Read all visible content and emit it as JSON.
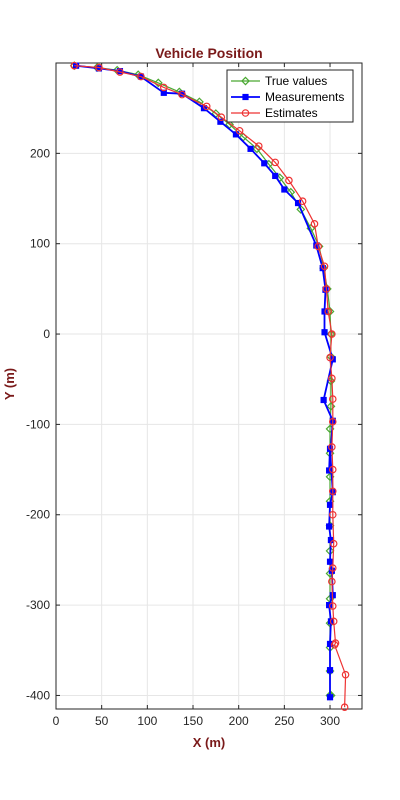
{
  "chart_data": {
    "type": "line",
    "title": "Vehicle Position",
    "xlabel": "X (m)",
    "ylabel": "Y (m)",
    "xlim": [
      0,
      335
    ],
    "ylim": [
      -415,
      300
    ],
    "xticks": [
      0,
      50,
      100,
      150,
      200,
      250,
      300
    ],
    "yticks": [
      -400,
      -300,
      -200,
      -100,
      0,
      100,
      200
    ],
    "grid": true,
    "legend_position": "top-right",
    "colors": {
      "title": "#7a1a1a",
      "axis_label": "#7a1a1a",
      "grid": "#e6e6e6"
    },
    "series": [
      {
        "name": "True values",
        "color": "#4aa832",
        "marker": "diamond",
        "x": [
          20,
          45,
          67,
          90,
          112,
          135,
          157,
          175,
          190,
          205,
          220,
          233,
          245,
          257,
          268,
          279,
          288,
          293,
          297,
          300,
          301,
          301,
          301,
          301,
          300,
          300,
          300,
          300,
          300,
          300,
          300,
          300,
          300,
          300,
          300,
          300,
          301,
          301,
          301,
          300
        ],
        "y": [
          297,
          295,
          292,
          287,
          278,
          268,
          257,
          244,
          232,
          218,
          205,
          188,
          173,
          157,
          138,
          117,
          97,
          73,
          50,
          25,
          0,
          -25,
          -52,
          -80,
          -105,
          -132,
          -158,
          -185,
          -212,
          -240,
          -265,
          -293,
          -320,
          -347,
          -373,
          -400,
          -400,
          -400,
          -400,
          -400
        ]
      },
      {
        "name": "Measurements",
        "color": "#0000ff",
        "marker": "square",
        "x": [
          22,
          47,
          70,
          93,
          118,
          138,
          162,
          180,
          197,
          213,
          228,
          240,
          250,
          265,
          285,
          292,
          295,
          294,
          294,
          303,
          293,
          303,
          299,
          300,
          303,
          300,
          299,
          301,
          300,
          302,
          303,
          299,
          301,
          300,
          300,
          300
        ],
        "y": [
          297,
          294,
          291,
          285,
          267,
          266,
          250,
          235,
          221,
          205,
          189,
          175,
          160,
          145,
          98,
          73,
          49,
          25,
          2,
          -28,
          -73,
          -96,
          -151,
          -127,
          -175,
          -189,
          -213,
          -228,
          -252,
          -262,
          -289,
          -300,
          -318,
          -343,
          -372,
          -402
        ]
      },
      {
        "name": "Estimates",
        "color": "#ee3333",
        "marker": "circle",
        "x": [
          20,
          47,
          70,
          93,
          118,
          138,
          165,
          181,
          201,
          222,
          240,
          255,
          270,
          283,
          287,
          294,
          296,
          298,
          302,
          300,
          302,
          303,
          303,
          302,
          303,
          303,
          303,
          304,
          303,
          302,
          303,
          304,
          306,
          305,
          317,
          316
        ],
        "y": [
          297,
          295,
          290,
          285,
          273,
          265,
          252,
          240,
          225,
          208,
          190,
          170,
          147,
          122,
          97,
          75,
          50,
          25,
          0,
          -26,
          -49,
          -72,
          -97,
          -125,
          -150,
          -174,
          -200,
          -232,
          -259,
          -274,
          -301,
          -318,
          -342,
          -344,
          -377,
          -413
        ]
      }
    ]
  }
}
